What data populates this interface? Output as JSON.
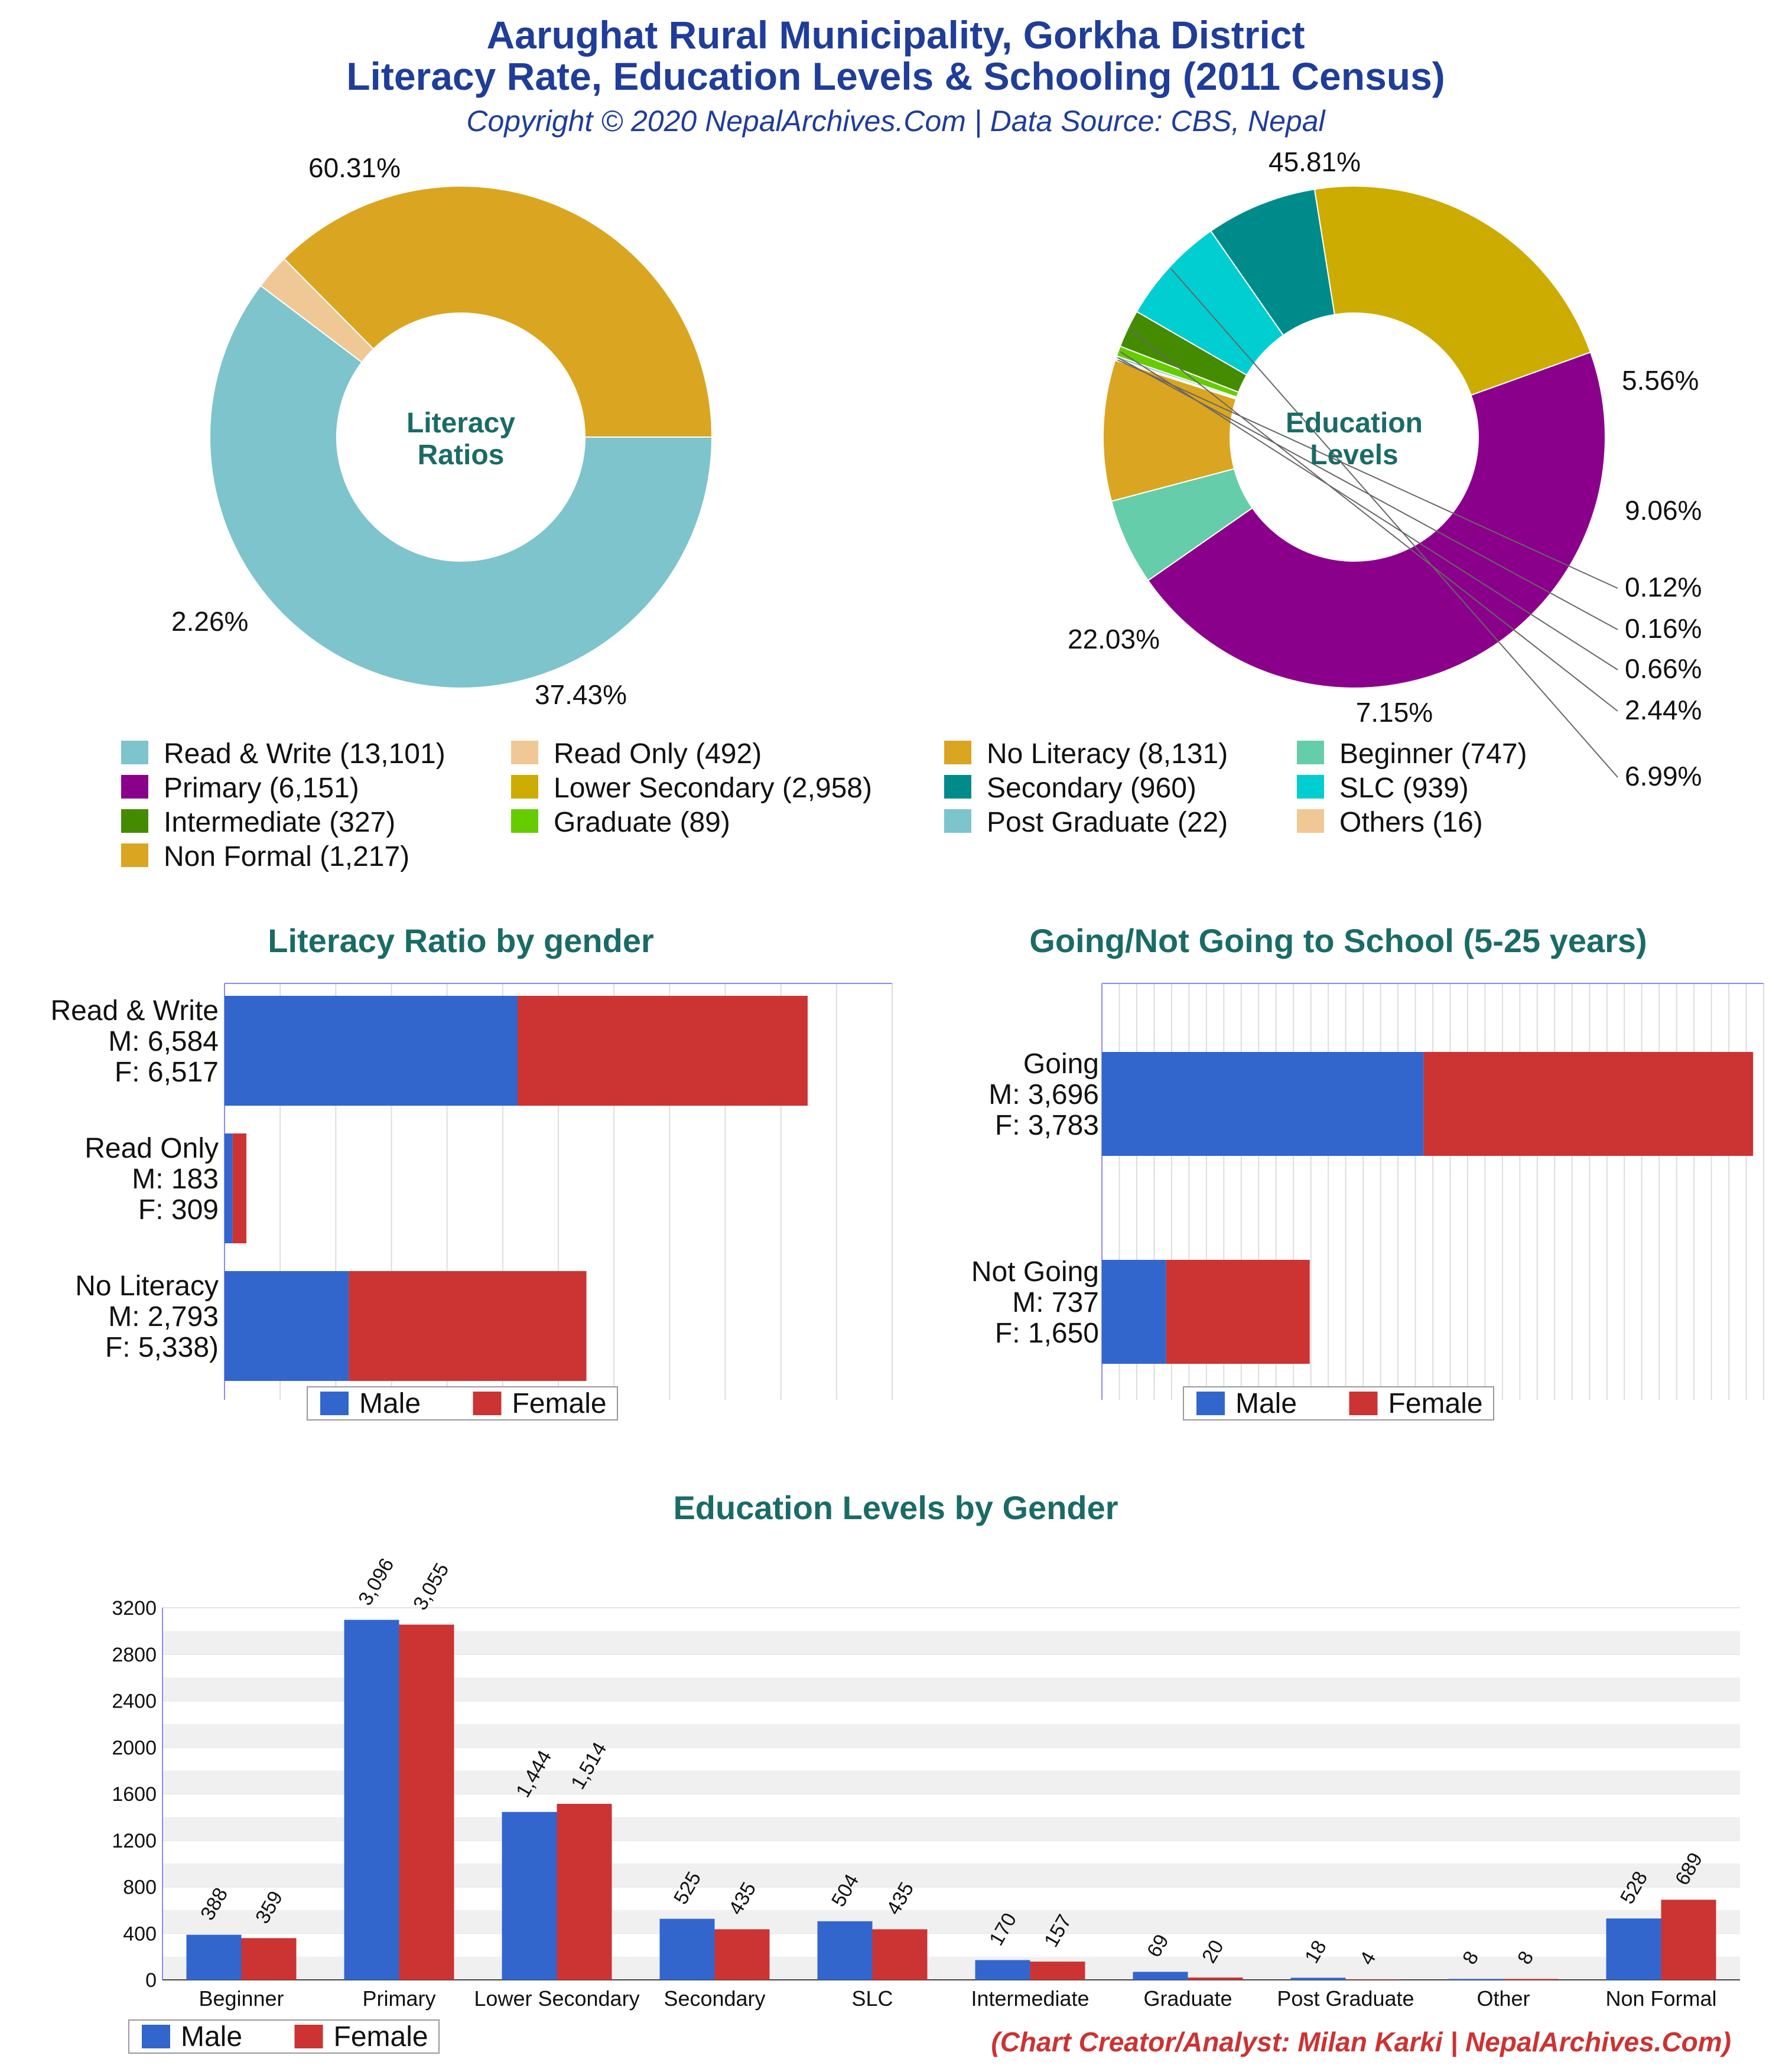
{
  "header": {
    "title_line1": "Aarughat Rural Municipality, Gorkha District",
    "title_line2": "Literacy Rate, Education Levels & Schooling (2011 Census)",
    "subtitle": "Copyright © 2020 NepalArchives.Com | Data Source: CBS, Nepal"
  },
  "colors": {
    "male": "#3366cc",
    "female": "#cc3333",
    "title": "#1f3d99",
    "section_title": "#1a6b66"
  },
  "chart_data": [
    {
      "type": "pie",
      "donut": true,
      "center_label": [
        "Literacy",
        "Ratios"
      ],
      "slices": [
        {
          "label": "Read & Write",
          "value": 13101,
          "pct_label": "60.31%",
          "color": "#7ec4cc"
        },
        {
          "label": "Read Only",
          "value": 492,
          "pct_label": "2.26%",
          "color": "#f0c896"
        },
        {
          "label": "No Literacy",
          "value": 8131,
          "pct_label": "37.43%",
          "color": "#daa520"
        }
      ]
    },
    {
      "type": "pie",
      "donut": true,
      "center_label": [
        "Education",
        "Levels"
      ],
      "slices": [
        {
          "label": "Primary",
          "value": 6151,
          "pct_label": "45.81%",
          "color": "#8b008b"
        },
        {
          "label": "Beginner",
          "value": 747,
          "pct_label": "5.56%",
          "color": "#66cdaa"
        },
        {
          "label": "Non Formal",
          "value": 1217,
          "pct_label": "9.06%",
          "color": "#daa520"
        },
        {
          "label": "Others",
          "value": 16,
          "pct_label": "0.12%",
          "color": "#f0c896"
        },
        {
          "label": "Post Graduate",
          "value": 22,
          "pct_label": "0.16%",
          "color": "#7ec4cc"
        },
        {
          "label": "Graduate",
          "value": 89,
          "pct_label": "0.66%",
          "color": "#66cc00"
        },
        {
          "label": "Intermediate",
          "value": 327,
          "pct_label": "2.44%",
          "color": "#458b00"
        },
        {
          "label": "SLC",
          "value": 939,
          "pct_label": "6.99%",
          "color": "#00ced1"
        },
        {
          "label": "Secondary",
          "value": 960,
          "pct_label": "7.15%",
          "color": "#008b8b"
        },
        {
          "label": "Lower Secondary",
          "value": 2958,
          "pct_label": "22.03%",
          "color": "#ccac00"
        }
      ]
    },
    {
      "type": "bar",
      "orientation": "horizontal",
      "stacked": true,
      "title": "Literacy Ratio by gender",
      "categories": [
        {
          "lines": [
            "Read & Write",
            "M: 6,584",
            "F: 6,517"
          ]
        },
        {
          "lines": [
            "Read Only",
            "M: 183",
            "F: 309"
          ]
        },
        {
          "lines": [
            "No Literacy",
            "M: 2,793",
            "F: 5,338)"
          ]
        }
      ],
      "series": [
        {
          "name": "Male",
          "values": [
            6584,
            183,
            2793
          ]
        },
        {
          "name": "Female",
          "values": [
            6517,
            309,
            5338
          ]
        }
      ],
      "xlim": [
        0,
        15000
      ],
      "grid": true
    },
    {
      "type": "bar",
      "orientation": "horizontal",
      "stacked": true,
      "title": "Going/Not Going to School (5-25 years)",
      "categories": [
        {
          "lines": [
            "Going",
            "M: 3,696",
            "F: 3,783"
          ]
        },
        {
          "lines": [
            "Not Going",
            "M: 737",
            "F: 1,650"
          ]
        }
      ],
      "series": [
        {
          "name": "Male",
          "values": [
            3696,
            737
          ]
        },
        {
          "name": "Female",
          "values": [
            3783,
            1650
          ]
        }
      ],
      "xlim": [
        0,
        7600
      ],
      "grid": true
    },
    {
      "type": "bar",
      "orientation": "vertical",
      "title": "Education Levels by Gender",
      "categories": [
        "Beginner",
        "Primary",
        "Lower Secondary",
        "Secondary",
        "SLC",
        "Intermediate",
        "Graduate",
        "Post Graduate",
        "Other",
        "Non Formal"
      ],
      "series": [
        {
          "name": "Male",
          "values": [
            388,
            3096,
            1444,
            525,
            504,
            170,
            69,
            18,
            8,
            528
          ],
          "labels": [
            "388",
            "3,096",
            "1,444",
            "525",
            "504",
            "170",
            "69",
            "18",
            "8",
            "528"
          ]
        },
        {
          "name": "Female",
          "values": [
            359,
            3055,
            1514,
            435,
            435,
            157,
            20,
            4,
            8,
            689
          ],
          "labels": [
            "359",
            "3,055",
            "1,514",
            "435",
            "435",
            "157",
            "20",
            "4",
            "8",
            "689"
          ]
        }
      ],
      "yticks": [
        "0",
        "400",
        "800",
        "1200",
        "1600",
        "2000",
        "2400",
        "2800",
        "3200"
      ],
      "ylim": [
        0,
        3200
      ],
      "grid": true,
      "legend": "bottom-left"
    }
  ],
  "legend_main": [
    [
      "Read & Write (13,101)",
      "#7ec4cc"
    ],
    [
      "Read Only (492)",
      "#f0c896"
    ],
    [
      "No Literacy (8,131)",
      "#daa520"
    ],
    [
      "Beginner (747)",
      "#66cdaa"
    ],
    [
      "Primary (6,151)",
      "#8b008b"
    ],
    [
      "Lower Secondary (2,958)",
      "#ccac00"
    ],
    [
      "Secondary (960)",
      "#008b8b"
    ],
    [
      "SLC (939)",
      "#00ced1"
    ],
    [
      "Intermediate (327)",
      "#458b00"
    ],
    [
      "Graduate (89)",
      "#66cc00"
    ],
    [
      "Post Graduate (22)",
      "#7ec4cc"
    ],
    [
      "Others (16)",
      "#f0c896"
    ],
    [
      "Non Formal (1,217)",
      "#daa520"
    ]
  ],
  "legend_gender": {
    "male": "Male",
    "female": "Female"
  },
  "credit": "(Chart Creator/Analyst: Milan Karki | NepalArchives.Com)"
}
